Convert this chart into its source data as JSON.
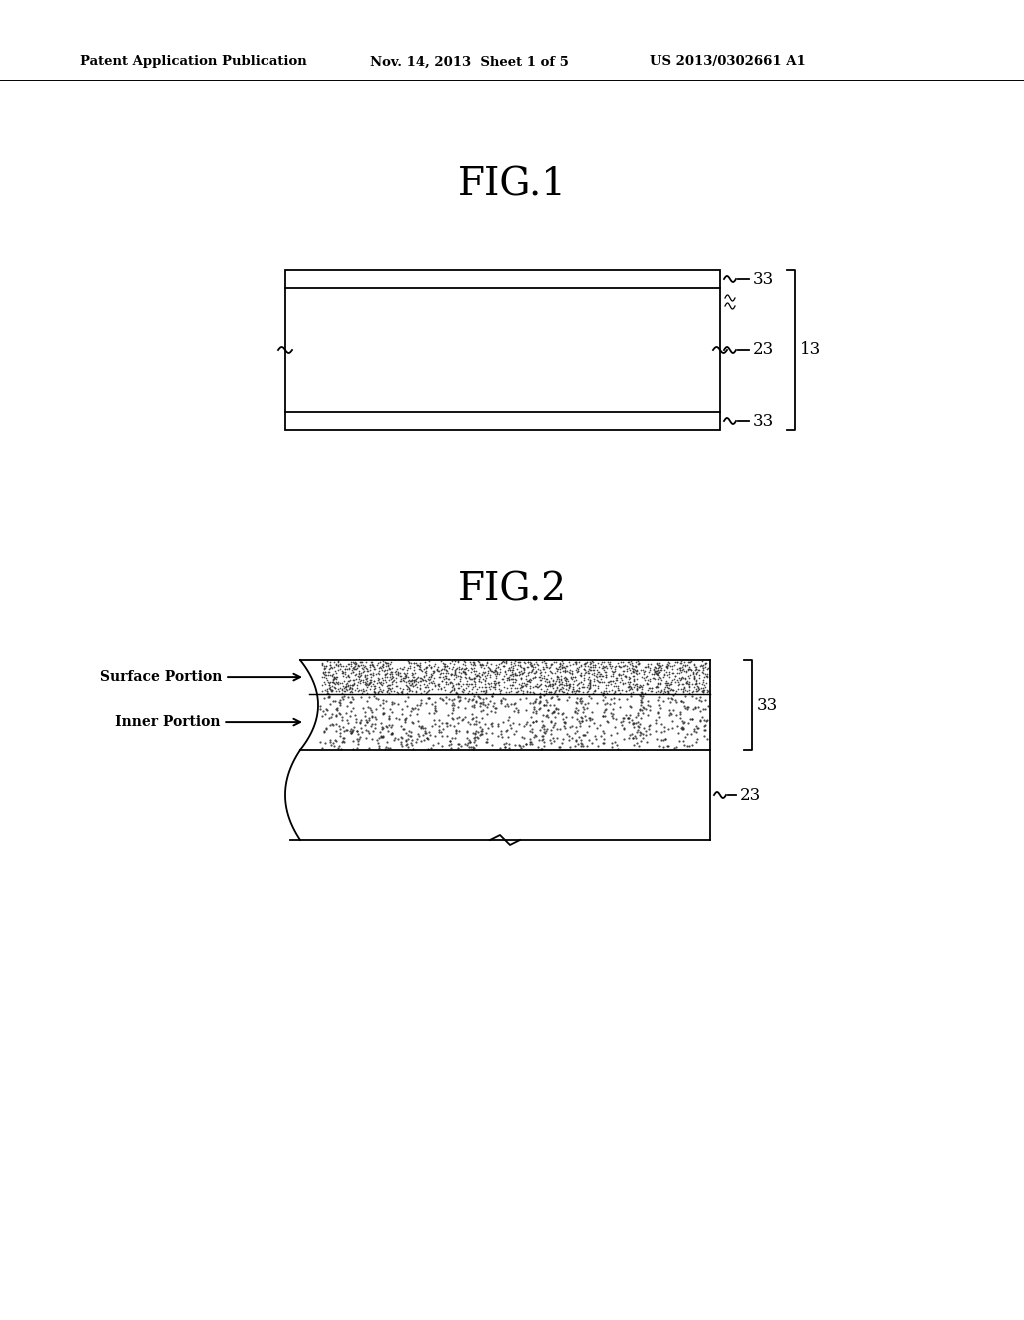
{
  "header_left": "Patent Application Publication",
  "header_mid": "Nov. 14, 2013  Sheet 1 of 5",
  "header_right": "US 2013/0302661 A1",
  "fig1_title": "FIG.1",
  "fig2_title": "FIG.2",
  "fig1_labels": [
    "33",
    "23",
    "13",
    "33"
  ],
  "fig2_labels": [
    "33",
    "23"
  ],
  "fig2_arrow_labels": [
    "Surface Portion",
    "Inner Portion"
  ],
  "background_color": "#ffffff",
  "line_color": "#000000"
}
